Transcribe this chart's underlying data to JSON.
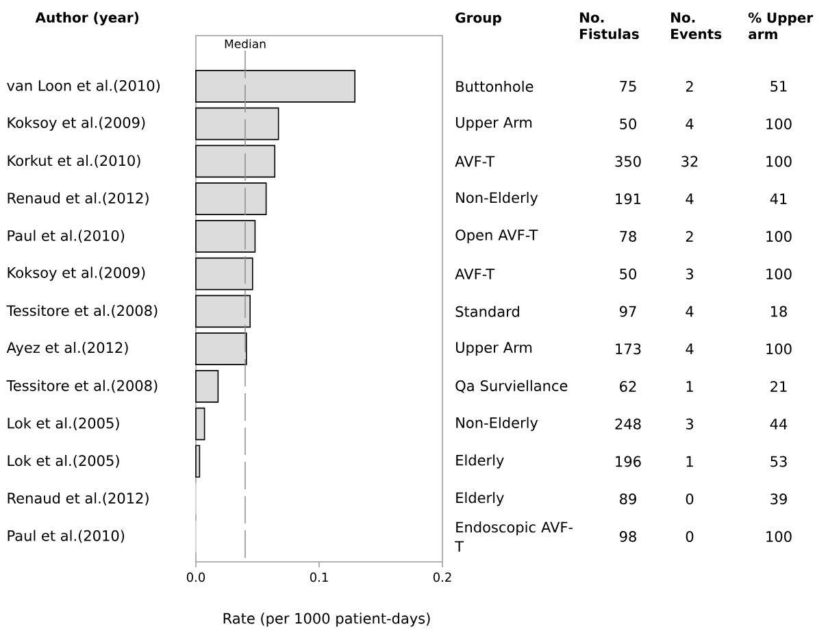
{
  "chart_data": [
    {
      "type": "bar",
      "orientation": "horizontal",
      "ylabel": "Author (year)",
      "xlabel": "Rate (per 1000 patient-days)",
      "categories": [
        "van Loon et al.(2010)",
        "Koksoy et al.(2009)",
        "Korkut et al.(2010)",
        "Renaud et al.(2012)",
        "Paul et al.(2010)",
        "Koksoy et al.(2009)",
        "Tessitore et al.(2008)",
        "Ayez et al.(2012)",
        "Tessitore et al.(2008)",
        "Lok et al.(2005)",
        "Lok et al.(2005)",
        "Renaud et al.(2012)",
        "Paul et al.(2010)"
      ],
      "values": [
        0.129,
        0.067,
        0.064,
        0.057,
        0.048,
        0.046,
        0.044,
        0.041,
        0.018,
        0.007,
        0.003,
        0,
        0
      ],
      "color": "#dcdcdc",
      "xlim": [
        0,
        0.2
      ],
      "xticks": [
        {
          "value": 0,
          "label": "0.0"
        },
        0.1,
        0.2
      ],
      "ref_lines": [
        {
          "axis": "x",
          "value": 0.04,
          "label": "Median",
          "color": "#8c8c8c",
          "line_style": "dashed"
        }
      ]
    },
    {
      "type": "other",
      "annotations": [
        "Group",
        "No. Fistulas",
        "No. Events",
        "% Upper arm",
        "Buttonhole",
        "75",
        "2",
        "51",
        "Upper Arm",
        "50",
        "4",
        "100",
        "AVF-T",
        "350",
        "32",
        "100",
        "Non-Elderly",
        "191",
        "4",
        "41",
        "Open AVF-T",
        "78",
        "2",
        "100",
        "AVF-T",
        "50",
        "3",
        "100",
        "Standard",
        "97",
        "4",
        "18",
        "Upper Arm",
        "173",
        "4",
        "100",
        "Qa Surviellance",
        "62",
        "1",
        "21",
        "Non-Elderly",
        "248",
        "3",
        "44",
        "Elderly",
        "196",
        "1",
        "53",
        "Elderly",
        "89",
        "0",
        "39",
        "Endoscopic AVF-T",
        "98",
        "0",
        "100"
      ]
    }
  ]
}
